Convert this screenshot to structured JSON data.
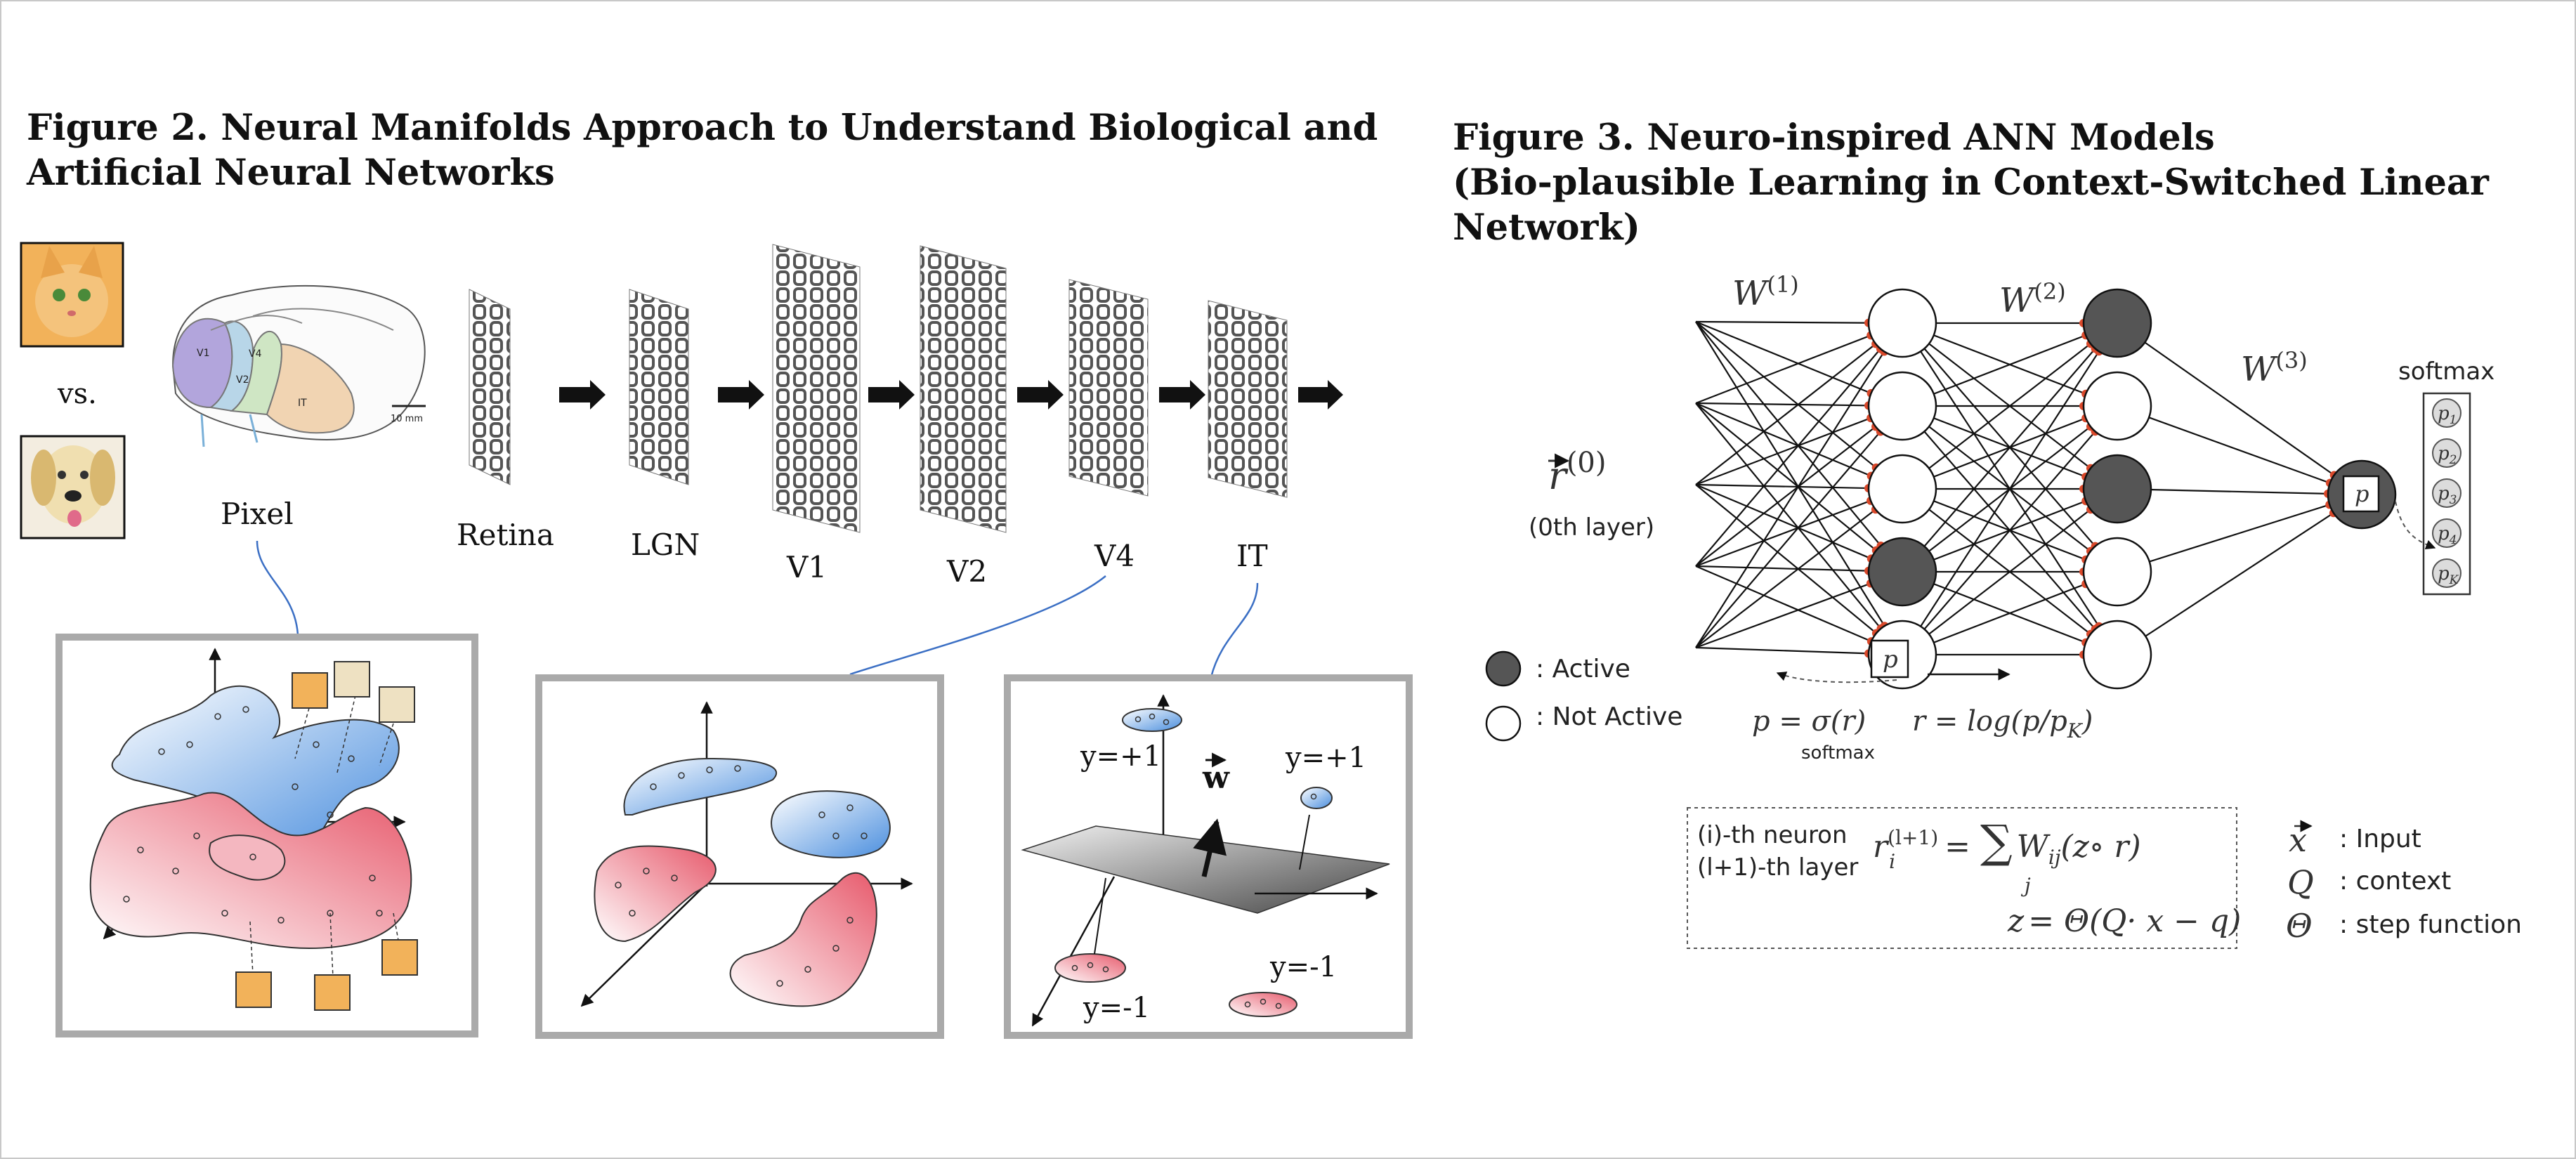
{
  "figure2": {
    "title_line1": "Figure 2. Neural Manifolds Approach to Understand Biological and",
    "title_line2": "Artificial Neural Networks",
    "vs_label": "vs.",
    "pixel_label": "Pixel",
    "brain_areas": [
      "V1",
      "V2",
      "V4",
      "IT"
    ],
    "scale_bar": "10 mm",
    "stages": [
      "Retina",
      "LGN",
      "V1",
      "V2",
      "V4",
      "IT"
    ],
    "panel3": {
      "label_top_left": "y=+1",
      "label_top_right": "y=+1",
      "weight": "w",
      "label_bottom_left": "y=-1",
      "label_bottom_right": "y=-1"
    }
  },
  "figure3": {
    "title_line1": "Figure 3. Neuro-inspired ANN Models",
    "title_line2": "(Bio-plausible Learning in Context-Switched Linear Network)",
    "input_name": "r",
    "input_sup": "(0)",
    "input_caption": "(0th layer)",
    "weights": [
      {
        "name": "W",
        "sup": "(1)"
      },
      {
        "name": "W",
        "sup": "(2)"
      },
      {
        "name": "W",
        "sup": "(3)"
      }
    ],
    "softmax_title": "softmax",
    "softmax_items": [
      {
        "base": "p",
        "sub": "1"
      },
      {
        "base": "p",
        "sub": "2"
      },
      {
        "base": "p",
        "sub": "3"
      },
      {
        "base": "p",
        "sub": "4"
      },
      {
        "base": "p",
        "sub": "K"
      }
    ],
    "p_box": "p",
    "legend_active": ": Active",
    "legend_inactive": ": Not Active",
    "eq_sigma": "p = σ(r)",
    "eq_sigma_note": "softmax",
    "eq_log": "r = log(p/p",
    "eq_log_sub": "K",
    "box": {
      "neuron_label": "(i)-th neuron",
      "layer_label": "(l+1)-th layer",
      "eq1_left": "r",
      "eq1_sup": "(l+1)",
      "eq1_sub": "i",
      "eq1_right": "W",
      "eq1_right_sub": "ij",
      "eq1_tail": "(z",
      "eq1_tail2": "∘ r",
      "eq1_close": ")",
      "sum_symbol": "∑",
      "sum_index": "j",
      "eq2": "z",
      "eq2_rhs": "= Θ(Q",
      "eq2_tail": "· x − q)"
    },
    "key": [
      {
        "symbol": "x",
        "text": ": Input"
      },
      {
        "symbol": "Q",
        "text": ": context"
      },
      {
        "symbol": "Θ",
        "text": ": step function"
      }
    ]
  },
  "colors": {
    "blue_blob": "#5b9be0",
    "red_blob": "#e8707e",
    "active_neuron": "#555555",
    "synapse": "#d9482a",
    "panel_border": "#aaaaaa"
  }
}
